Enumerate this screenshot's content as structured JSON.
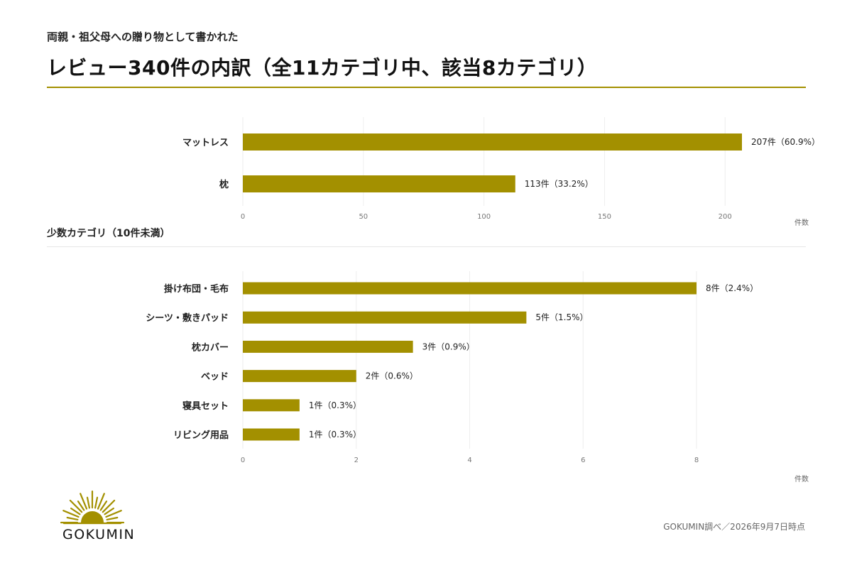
{
  "header": {
    "subtitle": "両親・祖父母への贈り物として書かれた",
    "title": "レビュー340件の内訳（全11カテゴリ中、該当8カテゴリ）"
  },
  "section_label": "少数カテゴリ（10件未満）",
  "chart_data": [
    {
      "type": "bar",
      "orientation": "horizontal",
      "categories": [
        "マットレス",
        "枕"
      ],
      "values": [
        207,
        113
      ],
      "value_labels": [
        "207件（60.9%）",
        "113件（33.2%）"
      ],
      "xlim": [
        0,
        207
      ],
      "xticks": [
        0,
        50,
        100,
        150,
        200
      ],
      "xlabel": "件数",
      "bar_color": "#a39000",
      "grid": true
    },
    {
      "type": "bar",
      "orientation": "horizontal",
      "categories": [
        "掛け布団・毛布",
        "シーツ・敷きパッド",
        "枕カバー",
        "ベッド",
        "寝具セット",
        "リビング用品"
      ],
      "values": [
        8,
        5,
        3,
        2,
        1,
        1
      ],
      "value_labels": [
        "8件（2.4%）",
        "5件（1.5%）",
        "3件（0.9%）",
        "2件（0.6%）",
        "1件（0.3%）",
        "1件（0.3%）"
      ],
      "xlim": [
        0,
        8
      ],
      "xticks": [
        0,
        2,
        4,
        6,
        8
      ],
      "xlabel": "件数",
      "bar_color": "#a39000",
      "grid": true
    }
  ],
  "logo": {
    "text": "GOKUMIN",
    "icon": "sunburst-icon",
    "color": "#a39000"
  },
  "source": "GOKUMIN調べ／2026年9月7日時点"
}
